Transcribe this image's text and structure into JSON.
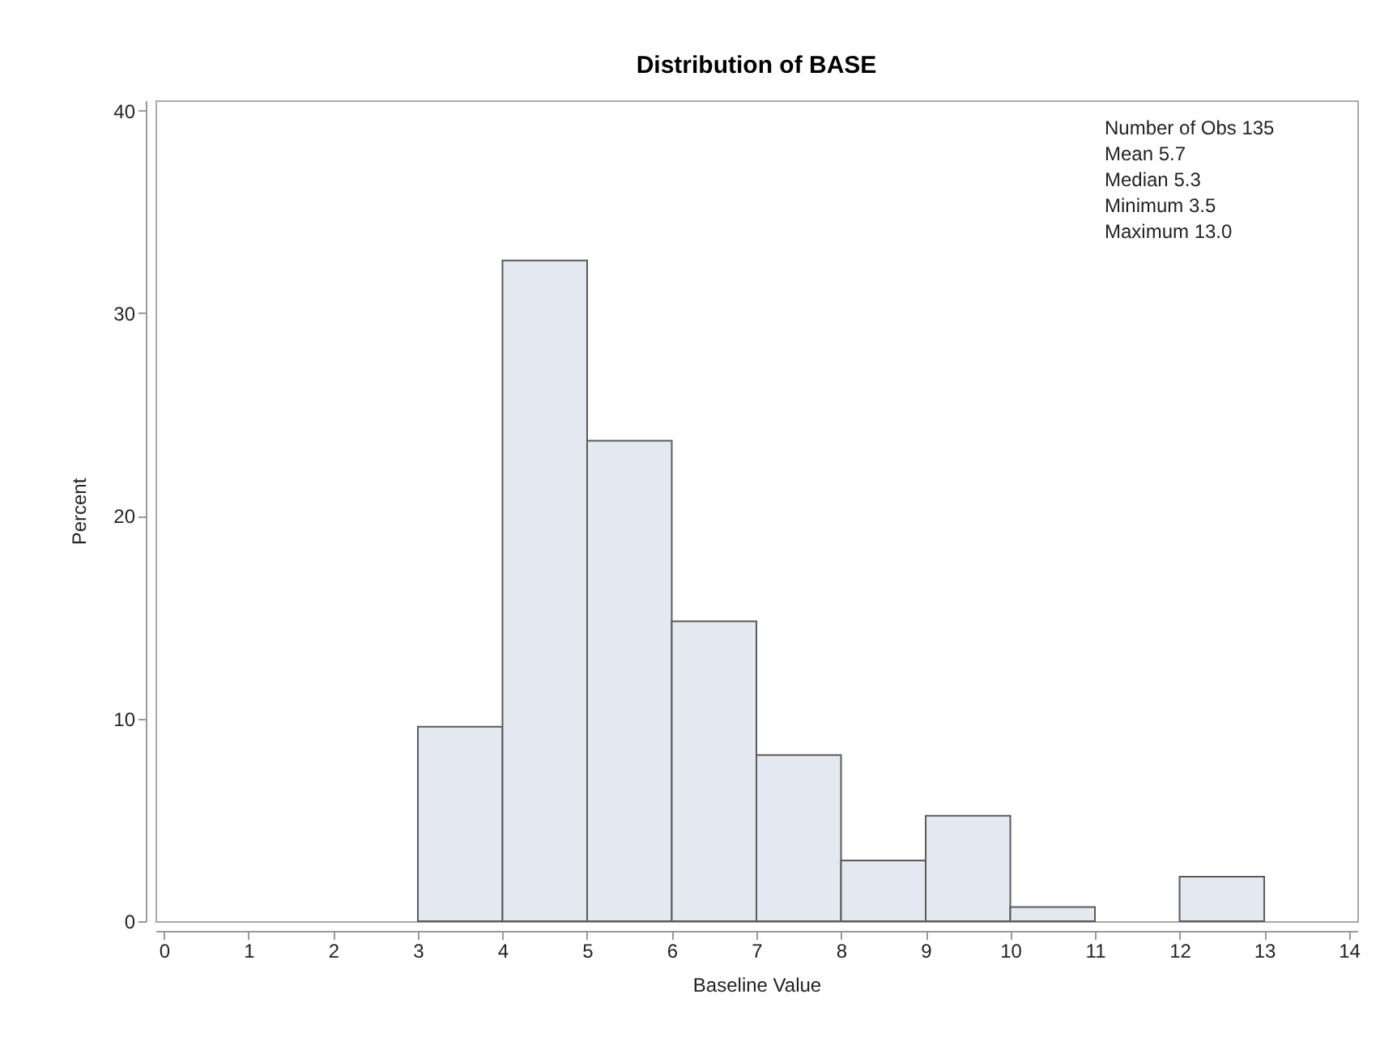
{
  "chart_data": {
    "type": "histogram",
    "title": "Distribution of BASE",
    "xlabel": "Baseline Value",
    "ylabel": "Percent",
    "bins": [
      3,
      4,
      5,
      6,
      7,
      8,
      9,
      10,
      11,
      12,
      13
    ],
    "values": [
      9.6,
      32.6,
      23.7,
      14.8,
      8.2,
      3.0,
      5.2,
      0.7,
      0,
      2.2
    ],
    "color": "#e4e8f1",
    "xlim": [
      -0.1,
      14.1
    ],
    "xticks": [
      0,
      1,
      2,
      3,
      4,
      5,
      6,
      7,
      8,
      9,
      10,
      11,
      12,
      13,
      14
    ],
    "ylim": [
      0,
      40.5
    ],
    "yticks": [
      0,
      10,
      20,
      30,
      40
    ],
    "grid": false,
    "annotations": [
      "Number of Obs 135",
      "Mean 5.7",
      "Median 5.3",
      "Minimum 3.5",
      "Maximum 13.0"
    ]
  }
}
